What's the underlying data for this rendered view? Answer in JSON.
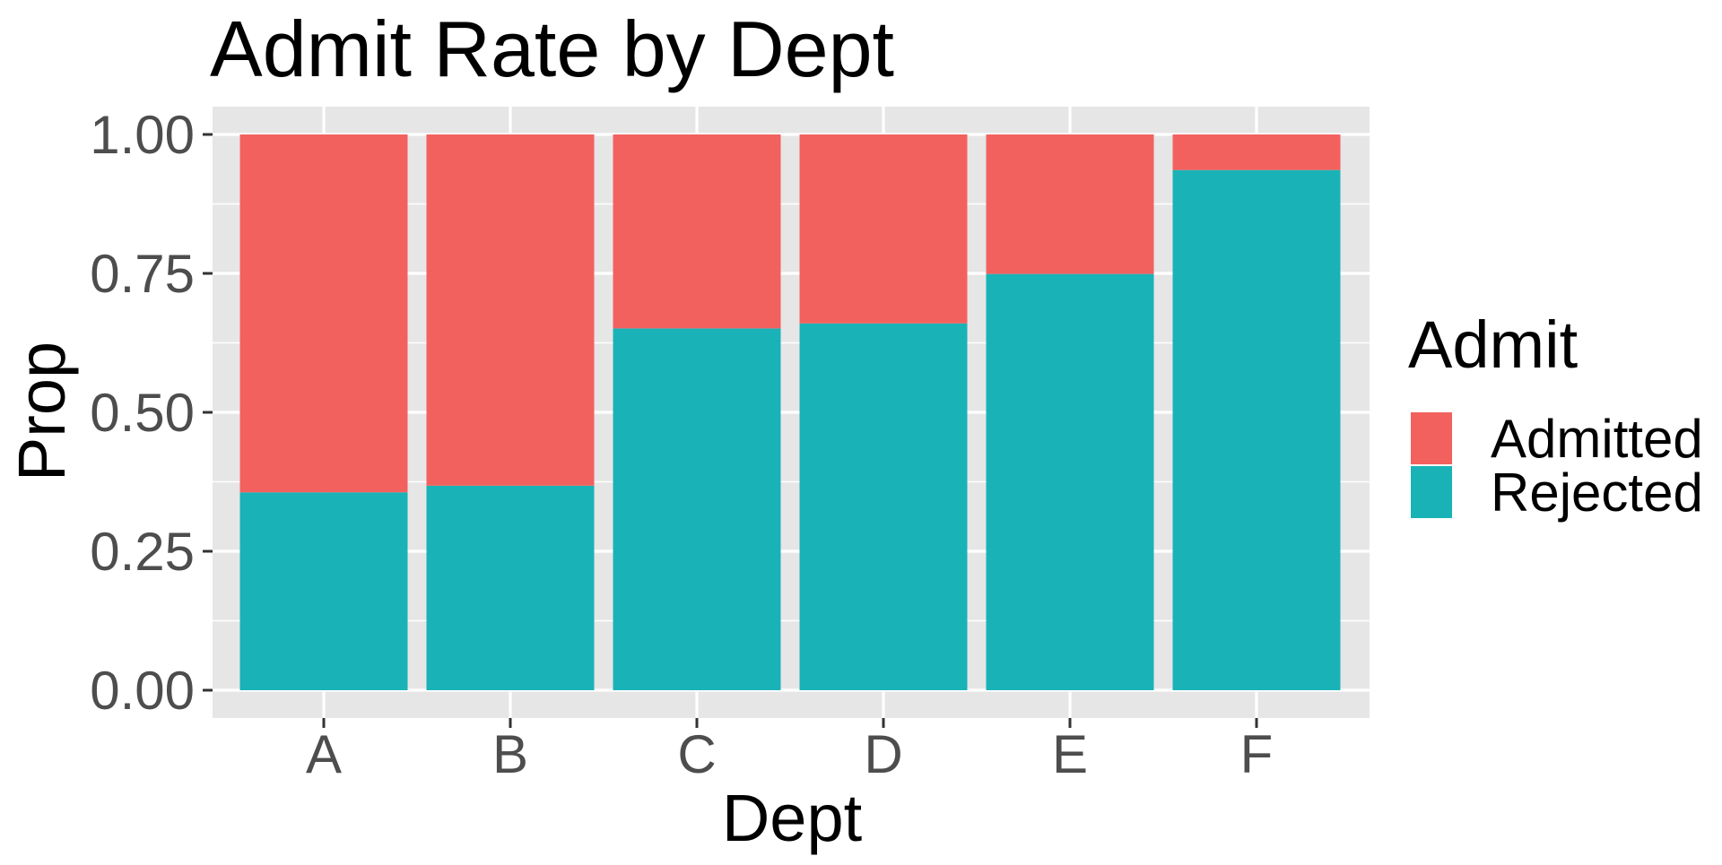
{
  "chart_data": {
    "type": "bar",
    "stacked": true,
    "title": "Admit Rate by Dept",
    "xlabel": "Dept",
    "ylabel": "Prop",
    "categories": [
      "A",
      "B",
      "C",
      "D",
      "E",
      "F"
    ],
    "ylim": [
      0,
      1
    ],
    "yticks": [
      "0.00",
      "0.25",
      "0.50",
      "0.75",
      "1.00"
    ],
    "legend": {
      "title": "Admit",
      "position": "right"
    },
    "grid": true,
    "series": [
      {
        "name": "Rejected",
        "color": "#19b3b7",
        "values": [
          0.356,
          0.368,
          0.651,
          0.66,
          0.749,
          0.936
        ]
      },
      {
        "name": "Admitted",
        "color": "#f3615e",
        "values": [
          0.644,
          0.632,
          0.349,
          0.34,
          0.251,
          0.064
        ]
      }
    ],
    "colors": {
      "panel": "#e6e6e6",
      "grid": "#ffffff",
      "axis_text": "#4d4d4d"
    }
  }
}
